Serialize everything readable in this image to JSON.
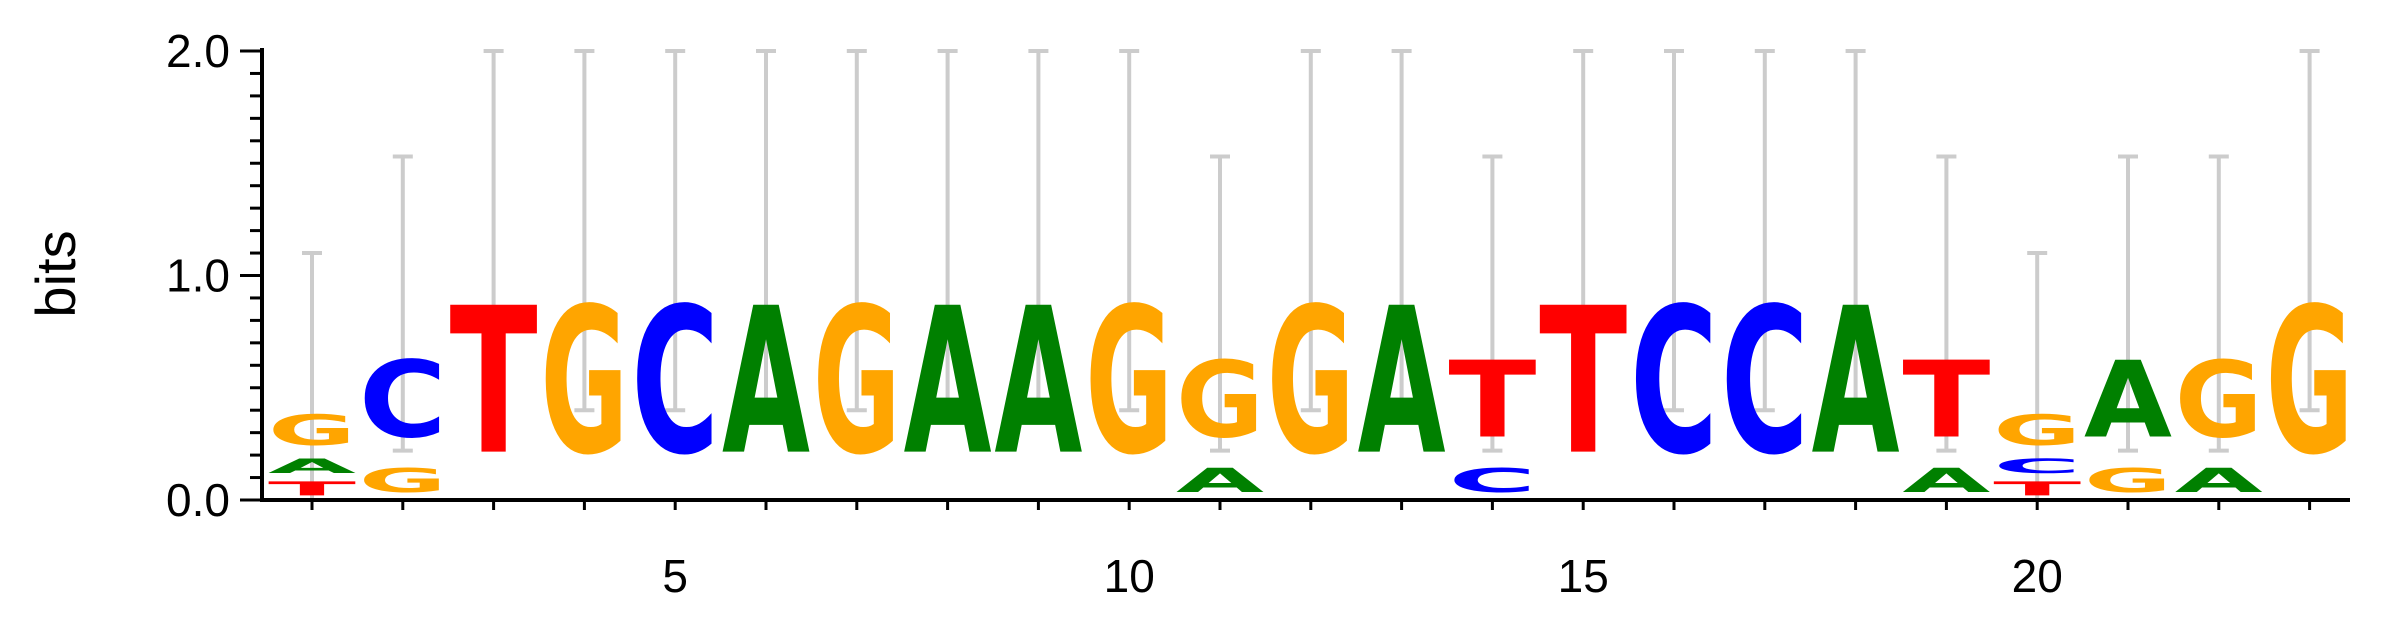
{
  "chart_data": {
    "type": "sequence-logo",
    "ylabel": "bits",
    "ylim": [
      0,
      2
    ],
    "y_ticks": [
      "0.0",
      "1.0",
      "2.0"
    ],
    "x_ticks": [
      5,
      10,
      15,
      20
    ],
    "error_bar_color": "#cccccc",
    "colors": {
      "A": "#008000",
      "C": "#0000ff",
      "G": "#ffa500",
      "T": "#ff0000"
    },
    "positions": [
      {
        "pos": 1,
        "letters": [
          {
            "l": "T",
            "h": 0.1
          },
          {
            "l": "A",
            "h": 0.1
          },
          {
            "l": "G",
            "h": 0.22
          }
        ],
        "err": [
          0.0,
          1.1
        ]
      },
      {
        "pos": 2,
        "letters": [
          {
            "l": "G",
            "h": 0.17
          },
          {
            "l": "C",
            "h": 0.55
          }
        ],
        "err": [
          0.22,
          1.53
        ]
      },
      {
        "pos": 3,
        "letters": [
          {
            "l": "T",
            "h": 1.05
          }
        ],
        "err": [
          0.4,
          2.0
        ]
      },
      {
        "pos": 4,
        "letters": [
          {
            "l": "G",
            "h": 1.05
          }
        ],
        "err": [
          0.4,
          2.0
        ]
      },
      {
        "pos": 5,
        "letters": [
          {
            "l": "C",
            "h": 1.05
          }
        ],
        "err": [
          0.4,
          2.0
        ]
      },
      {
        "pos": 6,
        "letters": [
          {
            "l": "A",
            "h": 1.05
          }
        ],
        "err": [
          0.4,
          2.0
        ]
      },
      {
        "pos": 7,
        "letters": [
          {
            "l": "G",
            "h": 1.05
          }
        ],
        "err": [
          0.4,
          2.0
        ]
      },
      {
        "pos": 8,
        "letters": [
          {
            "l": "A",
            "h": 1.05
          }
        ],
        "err": [
          0.4,
          2.0
        ]
      },
      {
        "pos": 9,
        "letters": [
          {
            "l": "A",
            "h": 1.05
          }
        ],
        "err": [
          0.4,
          2.0
        ]
      },
      {
        "pos": 10,
        "letters": [
          {
            "l": "G",
            "h": 1.05
          }
        ],
        "err": [
          0.4,
          2.0
        ]
      },
      {
        "pos": 11,
        "letters": [
          {
            "l": "A",
            "h": 0.17
          },
          {
            "l": "G",
            "h": 0.55
          }
        ],
        "err": [
          0.22,
          1.53
        ]
      },
      {
        "pos": 12,
        "letters": [
          {
            "l": "G",
            "h": 1.05
          }
        ],
        "err": [
          0.4,
          2.0
        ]
      },
      {
        "pos": 13,
        "letters": [
          {
            "l": "A",
            "h": 1.05
          }
        ],
        "err": [
          0.4,
          2.0
        ]
      },
      {
        "pos": 14,
        "letters": [
          {
            "l": "C",
            "h": 0.17
          },
          {
            "l": "T",
            "h": 0.55
          }
        ],
        "err": [
          0.22,
          1.53
        ]
      },
      {
        "pos": 15,
        "letters": [
          {
            "l": "T",
            "h": 1.05
          }
        ],
        "err": [
          0.4,
          2.0
        ]
      },
      {
        "pos": 16,
        "letters": [
          {
            "l": "C",
            "h": 1.05
          }
        ],
        "err": [
          0.4,
          2.0
        ]
      },
      {
        "pos": 17,
        "letters": [
          {
            "l": "C",
            "h": 1.05
          }
        ],
        "err": [
          0.4,
          2.0
        ]
      },
      {
        "pos": 18,
        "letters": [
          {
            "l": "A",
            "h": 1.05
          }
        ],
        "err": [
          0.4,
          2.0
        ]
      },
      {
        "pos": 19,
        "letters": [
          {
            "l": "A",
            "h": 0.17
          },
          {
            "l": "T",
            "h": 0.55
          }
        ],
        "err": [
          0.22,
          1.53
        ]
      },
      {
        "pos": 20,
        "letters": [
          {
            "l": "T",
            "h": 0.1
          },
          {
            "l": "C",
            "h": 0.1
          },
          {
            "l": "G",
            "h": 0.22
          }
        ],
        "err": [
          0.0,
          1.1
        ]
      },
      {
        "pos": 21,
        "letters": [
          {
            "l": "G",
            "h": 0.17
          },
          {
            "l": "A",
            "h": 0.55
          }
        ],
        "err": [
          0.22,
          1.53
        ]
      },
      {
        "pos": 22,
        "letters": [
          {
            "l": "A",
            "h": 0.17
          },
          {
            "l": "G",
            "h": 0.55
          }
        ],
        "err": [
          0.22,
          1.53
        ]
      },
      {
        "pos": 23,
        "letters": [
          {
            "l": "G",
            "h": 1.05
          }
        ],
        "err": [
          0.4,
          2.0
        ]
      }
    ]
  }
}
